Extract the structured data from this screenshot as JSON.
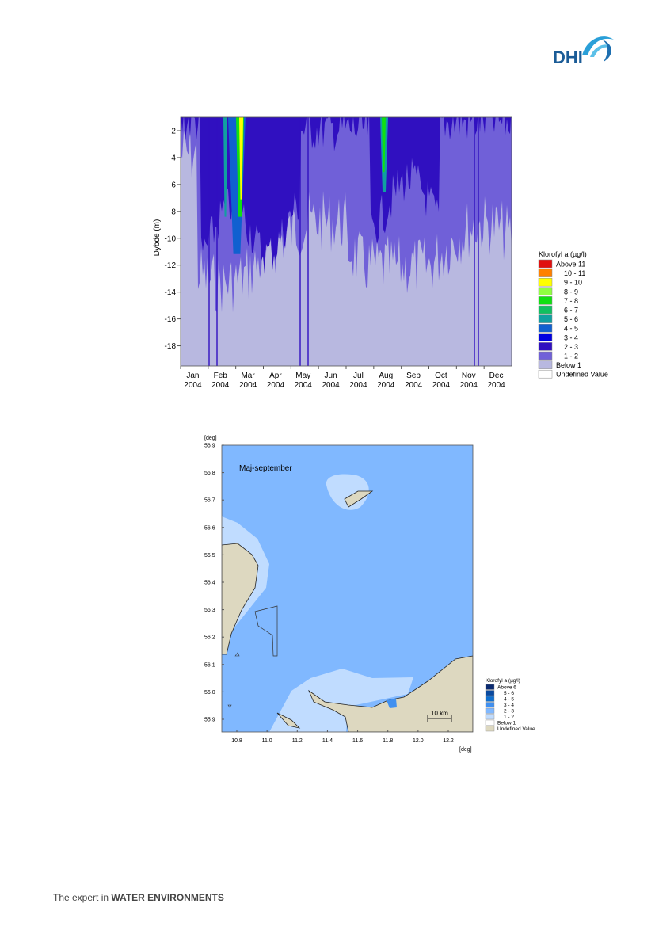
{
  "logo": "DHI",
  "figure1": {
    "y_label": "Dybde (m)",
    "y_ticks": [
      "-2",
      "-4",
      "-6",
      "-8",
      "-10",
      "-12",
      "-14",
      "-16",
      "-18"
    ],
    "x_ticks": [
      {
        "month": "Jan",
        "year": "2004"
      },
      {
        "month": "Feb",
        "year": "2004"
      },
      {
        "month": "Mar",
        "year": "2004"
      },
      {
        "month": "Apr",
        "year": "2004"
      },
      {
        "month": "May",
        "year": "2004"
      },
      {
        "month": "Jun",
        "year": "2004"
      },
      {
        "month": "Jul",
        "year": "2004"
      },
      {
        "month": "Aug",
        "year": "2004"
      },
      {
        "month": "Sep",
        "year": "2004"
      },
      {
        "month": "Oct",
        "year": "2004"
      },
      {
        "month": "Nov",
        "year": "2004"
      },
      {
        "month": "Dec",
        "year": "2004"
      }
    ],
    "legend": {
      "title": "Klorofyl a (µg/l)",
      "items": [
        {
          "label": "Above 11",
          "color": "#e01010"
        },
        {
          "label": "10 - 11",
          "color": "#ff8000"
        },
        {
          "label": "9 - 10",
          "color": "#ffff00"
        },
        {
          "label": "8 - 9",
          "color": "#90ff40"
        },
        {
          "label": "7 - 8",
          "color": "#10e010"
        },
        {
          "label": "6 - 7",
          "color": "#10c060"
        },
        {
          "label": "5 - 6",
          "color": "#10a0a0"
        },
        {
          "label": "4 - 5",
          "color": "#1060d0"
        },
        {
          "label": "3 - 4",
          "color": "#0000e0"
        },
        {
          "label": "2 - 3",
          "color": "#3010c0"
        },
        {
          "label": "1 - 2",
          "color": "#7060d8"
        },
        {
          "label": "Below 1",
          "color": "#b8b8e0"
        },
        {
          "label": "Undefined Value",
          "color": "#ffffff"
        }
      ]
    }
  },
  "figure2": {
    "annotation": "Maj-september",
    "y_unit": "[deg]",
    "x_unit": "[deg]",
    "y_ticks": [
      "56.9",
      "56.8",
      "56.7",
      "56.6",
      "56.5",
      "56.4",
      "56.3",
      "56.2",
      "56.1",
      "56.0",
      "55.9"
    ],
    "x_ticks": [
      "10.8",
      "11.0",
      "11.2",
      "11.4",
      "11.6",
      "11.8",
      "12.0",
      "12.2"
    ],
    "scale_bar": "10 km",
    "legend": {
      "title": "Klorofyl a (µg/l)",
      "items": [
        {
          "label": "Above 6",
          "color": "#0a2a70"
        },
        {
          "label": "5 - 6",
          "color": "#0a4aa0"
        },
        {
          "label": "4 - 5",
          "color": "#1070d0"
        },
        {
          "label": "3 - 4",
          "color": "#4090f0"
        },
        {
          "label": "2 - 3",
          "color": "#80b8ff"
        },
        {
          "label": "1 - 2",
          "color": "#c0dcff"
        },
        {
          "label": "Below 1",
          "color": "#ffffff"
        },
        {
          "label": "Undefined Value",
          "color": "#ddd8c0"
        }
      ]
    }
  },
  "footer": {
    "prefix": "The expert in",
    "emphasis": "WATER ENVIRONMENTS"
  }
}
